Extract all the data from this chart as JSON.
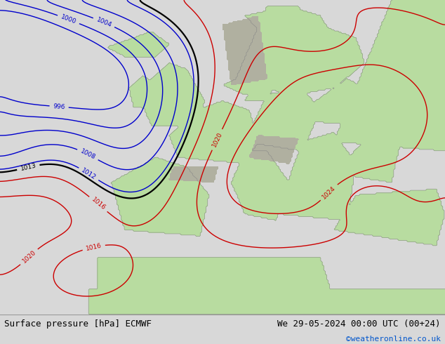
{
  "title_left": "Surface pressure [hPa] ECMWF",
  "title_right": "We 29-05-2024 00:00 UTC (00+24)",
  "watermark": "©weatheronline.co.uk",
  "ocean_color": "#dde8f0",
  "land_color": "#b8dca0",
  "mountain_color": "#b0b0a0",
  "isobar_color_blue": "#0000cc",
  "isobar_color_red": "#cc0000",
  "isobar_color_black": "#000000",
  "label_fontsize": 7,
  "title_fontsize": 9,
  "watermark_color": "#0055cc",
  "footer_bg": "#d8d8d8",
  "map_bg": "#e0e8f0"
}
